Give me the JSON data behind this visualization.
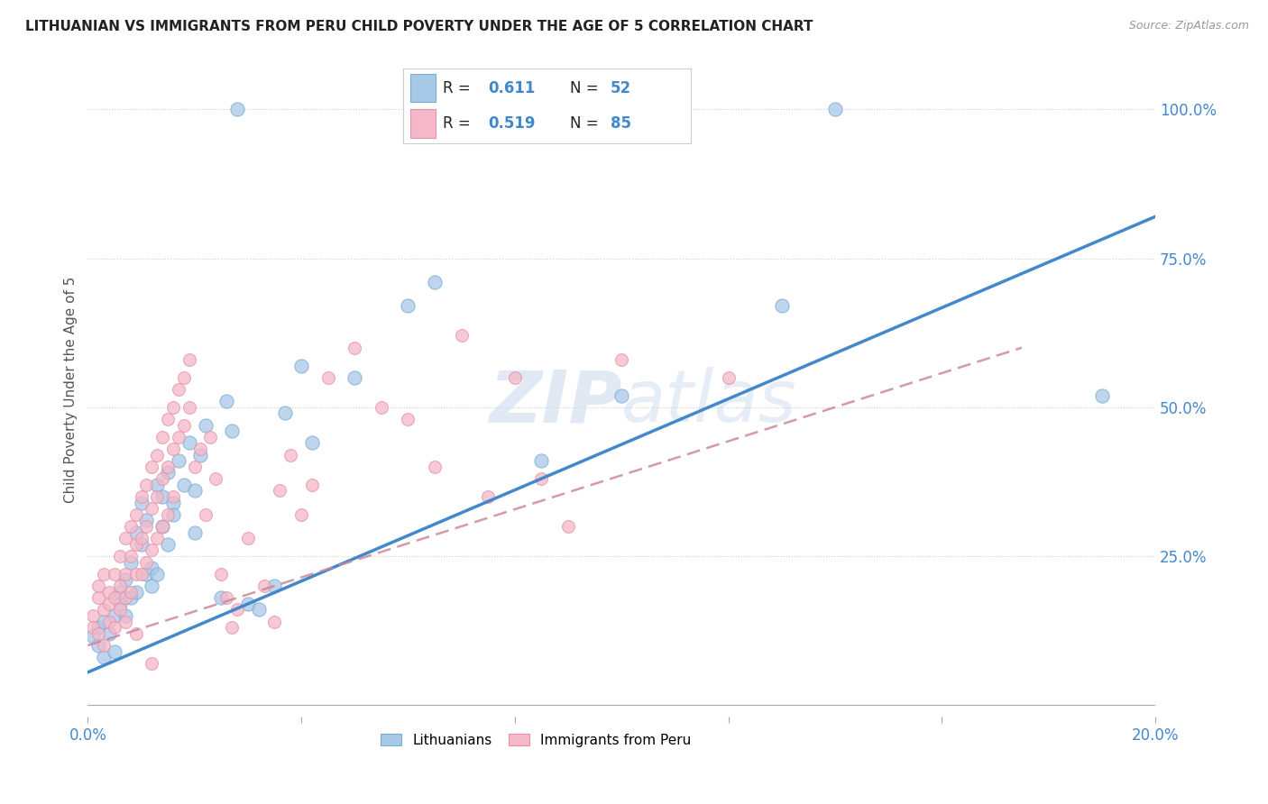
{
  "title": "LITHUANIAN VS IMMIGRANTS FROM PERU CHILD POVERTY UNDER THE AGE OF 5 CORRELATION CHART",
  "source": "Source: ZipAtlas.com",
  "ylabel": "Child Poverty Under the Age of 5",
  "xmin": 0.0,
  "xmax": 0.2,
  "ymin": -0.02,
  "ymax": 1.08,
  "xticks": [
    0.0,
    0.04,
    0.08,
    0.12,
    0.16,
    0.2
  ],
  "xtick_labels": [
    "0.0%",
    "",
    "",
    "",
    "",
    "20.0%"
  ],
  "ytick_positions": [
    0.0,
    0.25,
    0.5,
    0.75,
    1.0
  ],
  "ytick_labels": [
    "",
    "25.0%",
    "50.0%",
    "75.0%",
    "100.0%"
  ],
  "blue_color": "#a8c8e8",
  "pink_color": "#f4b8c8",
  "blue_edge_color": "#7aaed0",
  "pink_edge_color": "#e890a8",
  "blue_line_color": "#4488cc",
  "pink_line_color": "#cc8899",
  "label_color": "#4488cc",
  "legend_blue_label": "Lithuanians",
  "legend_pink_label": "Immigrants from Peru",
  "watermark": "ZIPatlas",
  "blue_scatter": [
    [
      0.001,
      0.115
    ],
    [
      0.002,
      0.1
    ],
    [
      0.002,
      0.13
    ],
    [
      0.003,
      0.08
    ],
    [
      0.003,
      0.14
    ],
    [
      0.004,
      0.12
    ],
    [
      0.005,
      0.15
    ],
    [
      0.005,
      0.09
    ],
    [
      0.006,
      0.17
    ],
    [
      0.006,
      0.19
    ],
    [
      0.007,
      0.15
    ],
    [
      0.007,
      0.21
    ],
    [
      0.008,
      0.18
    ],
    [
      0.008,
      0.24
    ],
    [
      0.009,
      0.19
    ],
    [
      0.009,
      0.29
    ],
    [
      0.01,
      0.27
    ],
    [
      0.01,
      0.34
    ],
    [
      0.011,
      0.22
    ],
    [
      0.011,
      0.31
    ],
    [
      0.012,
      0.23
    ],
    [
      0.012,
      0.2
    ],
    [
      0.013,
      0.37
    ],
    [
      0.013,
      0.22
    ],
    [
      0.014,
      0.35
    ],
    [
      0.014,
      0.3
    ],
    [
      0.015,
      0.39
    ],
    [
      0.015,
      0.27
    ],
    [
      0.016,
      0.34
    ],
    [
      0.016,
      0.32
    ],
    [
      0.017,
      0.41
    ],
    [
      0.018,
      0.37
    ],
    [
      0.019,
      0.44
    ],
    [
      0.02,
      0.36
    ],
    [
      0.02,
      0.29
    ],
    [
      0.021,
      0.42
    ],
    [
      0.022,
      0.47
    ],
    [
      0.025,
      0.18
    ],
    [
      0.026,
      0.51
    ],
    [
      0.027,
      0.46
    ],
    [
      0.03,
      0.17
    ],
    [
      0.032,
      0.16
    ],
    [
      0.035,
      0.2
    ],
    [
      0.037,
      0.49
    ],
    [
      0.04,
      0.57
    ],
    [
      0.042,
      0.44
    ],
    [
      0.05,
      0.55
    ],
    [
      0.06,
      0.67
    ],
    [
      0.065,
      0.71
    ],
    [
      0.085,
      0.41
    ],
    [
      0.1,
      0.52
    ],
    [
      0.13,
      0.67
    ],
    [
      0.19,
      0.52
    ],
    [
      0.028,
      1.0
    ],
    [
      0.14,
      1.0
    ]
  ],
  "pink_scatter": [
    [
      0.001,
      0.15
    ],
    [
      0.001,
      0.13
    ],
    [
      0.002,
      0.18
    ],
    [
      0.002,
      0.12
    ],
    [
      0.002,
      0.2
    ],
    [
      0.003,
      0.16
    ],
    [
      0.003,
      0.22
    ],
    [
      0.003,
      0.1
    ],
    [
      0.004,
      0.19
    ],
    [
      0.004,
      0.17
    ],
    [
      0.004,
      0.14
    ],
    [
      0.005,
      0.22
    ],
    [
      0.005,
      0.18
    ],
    [
      0.005,
      0.13
    ],
    [
      0.006,
      0.25
    ],
    [
      0.006,
      0.2
    ],
    [
      0.006,
      0.16
    ],
    [
      0.007,
      0.28
    ],
    [
      0.007,
      0.22
    ],
    [
      0.007,
      0.18
    ],
    [
      0.007,
      0.14
    ],
    [
      0.008,
      0.3
    ],
    [
      0.008,
      0.25
    ],
    [
      0.008,
      0.19
    ],
    [
      0.009,
      0.32
    ],
    [
      0.009,
      0.27
    ],
    [
      0.009,
      0.22
    ],
    [
      0.009,
      0.12
    ],
    [
      0.01,
      0.35
    ],
    [
      0.01,
      0.28
    ],
    [
      0.01,
      0.22
    ],
    [
      0.011,
      0.37
    ],
    [
      0.011,
      0.3
    ],
    [
      0.011,
      0.24
    ],
    [
      0.012,
      0.4
    ],
    [
      0.012,
      0.33
    ],
    [
      0.012,
      0.26
    ],
    [
      0.012,
      0.07
    ],
    [
      0.013,
      0.42
    ],
    [
      0.013,
      0.35
    ],
    [
      0.013,
      0.28
    ],
    [
      0.014,
      0.45
    ],
    [
      0.014,
      0.38
    ],
    [
      0.014,
      0.3
    ],
    [
      0.015,
      0.48
    ],
    [
      0.015,
      0.4
    ],
    [
      0.015,
      0.32
    ],
    [
      0.016,
      0.5
    ],
    [
      0.016,
      0.43
    ],
    [
      0.016,
      0.35
    ],
    [
      0.017,
      0.53
    ],
    [
      0.017,
      0.45
    ],
    [
      0.018,
      0.55
    ],
    [
      0.018,
      0.47
    ],
    [
      0.019,
      0.58
    ],
    [
      0.019,
      0.5
    ],
    [
      0.02,
      0.4
    ],
    [
      0.021,
      0.43
    ],
    [
      0.022,
      0.32
    ],
    [
      0.023,
      0.45
    ],
    [
      0.024,
      0.38
    ],
    [
      0.025,
      0.22
    ],
    [
      0.026,
      0.18
    ],
    [
      0.027,
      0.13
    ],
    [
      0.028,
      0.16
    ],
    [
      0.03,
      0.28
    ],
    [
      0.033,
      0.2
    ],
    [
      0.035,
      0.14
    ],
    [
      0.036,
      0.36
    ],
    [
      0.038,
      0.42
    ],
    [
      0.04,
      0.32
    ],
    [
      0.042,
      0.37
    ],
    [
      0.045,
      0.55
    ],
    [
      0.05,
      0.6
    ],
    [
      0.055,
      0.5
    ],
    [
      0.06,
      0.48
    ],
    [
      0.065,
      0.4
    ],
    [
      0.07,
      0.62
    ],
    [
      0.075,
      0.35
    ],
    [
      0.08,
      0.55
    ],
    [
      0.085,
      0.38
    ],
    [
      0.09,
      0.3
    ],
    [
      0.1,
      0.58
    ],
    [
      0.12,
      0.55
    ]
  ],
  "blue_line_x": [
    0.0,
    0.2
  ],
  "blue_line_y": [
    0.055,
    0.82
  ],
  "pink_line_x": [
    0.0,
    0.175
  ],
  "pink_line_y": [
    0.1,
    0.6
  ],
  "figsize": [
    14.06,
    8.92
  ],
  "dpi": 100
}
